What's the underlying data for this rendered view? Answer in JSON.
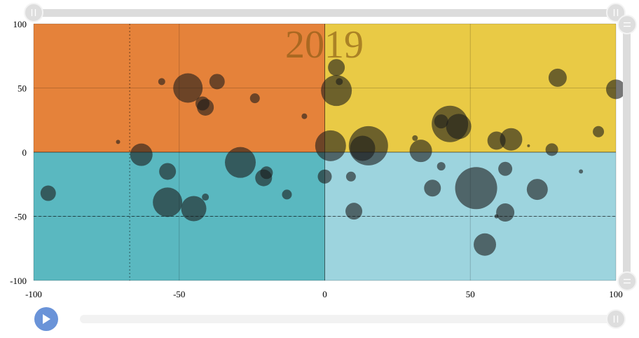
{
  "chart_data": {
    "type": "scatter",
    "variant": "bubble-quadrant",
    "title": "2019",
    "xlabel": "",
    "ylabel": "",
    "xlim": [
      -100,
      100
    ],
    "ylim": [
      -100,
      100
    ],
    "x_ticks": [
      "-100",
      "-50",
      "0",
      "50",
      "100"
    ],
    "y_ticks": [
      "100",
      "50",
      "0",
      "-50",
      "-100"
    ],
    "grid": true,
    "quadrant_colors": {
      "top_left": "#E5823A",
      "top_right": "#E9CA45",
      "bottom_left": "#5AB8C0",
      "bottom_right": "#9DD4DE"
    },
    "bubble_color": "#1a1a1a",
    "reference_lines": [
      {
        "axis": "x",
        "value": -67,
        "style": "dotted"
      },
      {
        "axis": "y",
        "value": -50,
        "style": "dashed"
      }
    ],
    "points": [
      {
        "x": -95,
        "y": -32,
        "size": 11
      },
      {
        "x": -71,
        "y": 8,
        "size": 3
      },
      {
        "x": -63,
        "y": -2,
        "size": 16
      },
      {
        "x": -56,
        "y": 55,
        "size": 5
      },
      {
        "x": -54,
        "y": -15,
        "size": 12
      },
      {
        "x": -54,
        "y": -39,
        "size": 21
      },
      {
        "x": -47,
        "y": 50,
        "size": 21
      },
      {
        "x": -45,
        "y": -44,
        "size": 18
      },
      {
        "x": -42,
        "y": 38,
        "size": 10
      },
      {
        "x": -41,
        "y": -35,
        "size": 5
      },
      {
        "x": -41,
        "y": 35,
        "size": 12
      },
      {
        "x": -37,
        "y": 55,
        "size": 11
      },
      {
        "x": -29,
        "y": -8,
        "size": 22
      },
      {
        "x": -24,
        "y": 42,
        "size": 7
      },
      {
        "x": -21,
        "y": -20,
        "size": 12
      },
      {
        "x": -20,
        "y": -16,
        "size": 9
      },
      {
        "x": -13,
        "y": -33,
        "size": 7
      },
      {
        "x": -7,
        "y": 28,
        "size": 4
      },
      {
        "x": 0,
        "y": -19,
        "size": 10
      },
      {
        "x": 2,
        "y": 5,
        "size": 22
      },
      {
        "x": 4,
        "y": 48,
        "size": 22
      },
      {
        "x": 4,
        "y": 66,
        "size": 12
      },
      {
        "x": 5,
        "y": 55,
        "size": 5
      },
      {
        "x": 9,
        "y": -19,
        "size": 7
      },
      {
        "x": 10,
        "y": -46,
        "size": 12
      },
      {
        "x": 13,
        "y": 3,
        "size": 18
      },
      {
        "x": 15,
        "y": 5,
        "size": 28
      },
      {
        "x": 31,
        "y": 11,
        "size": 4
      },
      {
        "x": 33,
        "y": 1,
        "size": 16
      },
      {
        "x": 37,
        "y": -28,
        "size": 12
      },
      {
        "x": 40,
        "y": -11,
        "size": 6
      },
      {
        "x": 40,
        "y": 24,
        "size": 10
      },
      {
        "x": 43,
        "y": 22,
        "size": 26
      },
      {
        "x": 46,
        "y": 20,
        "size": 18
      },
      {
        "x": 52,
        "y": -28,
        "size": 30
      },
      {
        "x": 55,
        "y": -72,
        "size": 16
      },
      {
        "x": 59,
        "y": 9,
        "size": 13
      },
      {
        "x": 59,
        "y": -50,
        "size": 3
      },
      {
        "x": 62,
        "y": -13,
        "size": 10
      },
      {
        "x": 62,
        "y": -47,
        "size": 13
      },
      {
        "x": 64,
        "y": 10,
        "size": 16
      },
      {
        "x": 70,
        "y": 5,
        "size": 2
      },
      {
        "x": 73,
        "y": -29,
        "size": 15
      },
      {
        "x": 78,
        "y": 2,
        "size": 9
      },
      {
        "x": 80,
        "y": 58,
        "size": 13
      },
      {
        "x": 88,
        "y": -15,
        "size": 3
      },
      {
        "x": 94,
        "y": 16,
        "size": 8
      },
      {
        "x": 100,
        "y": 49,
        "size": 14
      }
    ]
  },
  "controls": {
    "play_icon": "play-icon",
    "range_handle_icon": "grip-vertical-icon",
    "range_handle_icon_vertical": "grip-horizontal-icon"
  }
}
